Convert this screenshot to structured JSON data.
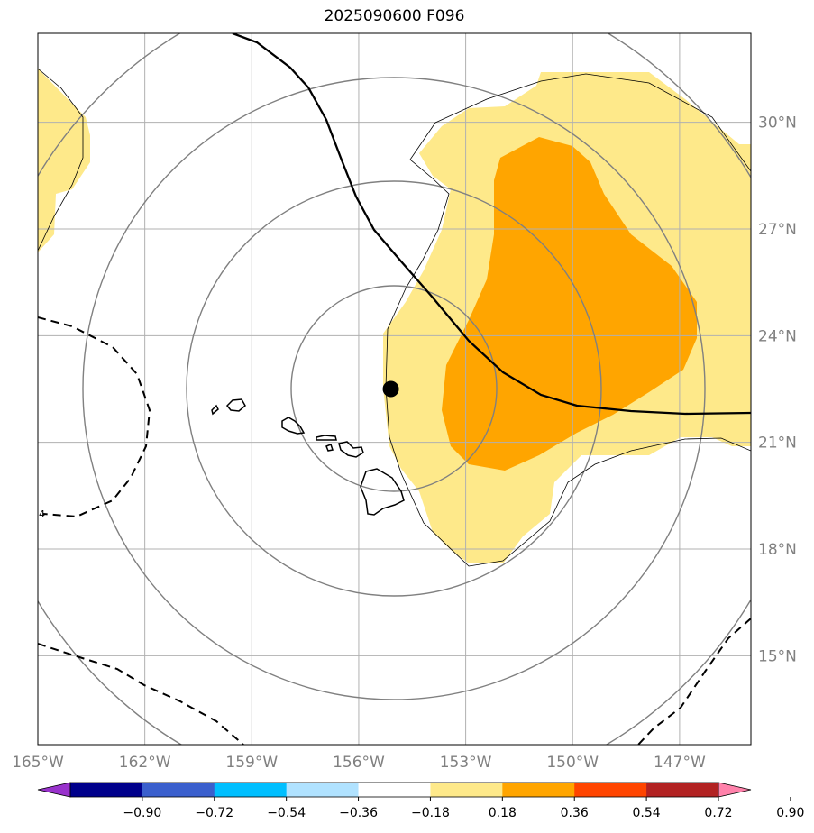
{
  "title": "2025090600 F096",
  "map": {
    "lon_labels": [
      "165°W",
      "162°W",
      "159°W",
      "156°W",
      "153°W",
      "150°W",
      "147°W"
    ],
    "lat_labels": [
      "30°N",
      "27°N",
      "24°N",
      "21°N",
      "18°N",
      "15°N"
    ],
    "lon_values": [
      -165,
      -162,
      -159,
      -156,
      -153,
      -150,
      -147
    ],
    "lat_values": [
      30,
      27,
      24,
      21,
      18,
      15
    ],
    "extent": {
      "lon_min": -165,
      "lon_max": -145,
      "lat_min": 12.5,
      "lat_max": 32.5
    },
    "center_marker": {
      "lon": -155.1,
      "lat": 22.5
    },
    "contour_label": "4",
    "colors": {
      "pos1": "#FEE98A",
      "pos2": "#FFA500",
      "grid": "#B0B0B0",
      "ring": "#808080",
      "axis_text": "#808080"
    }
  },
  "colorbar": {
    "ticks": [
      "−0.90",
      "−0.72",
      "−0.54",
      "−0.36",
      "−0.18",
      "0.18",
      "0.36",
      "0.54",
      "0.72",
      "0.90"
    ],
    "colors": [
      "#9932CC",
      "#00008B",
      "#3A5FCD",
      "#00BFFF",
      "#B0E2FF",
      "#FFFFFF",
      "#FEE98A",
      "#FFA500",
      "#FF4500",
      "#B22222",
      "#FF82AB"
    ]
  }
}
